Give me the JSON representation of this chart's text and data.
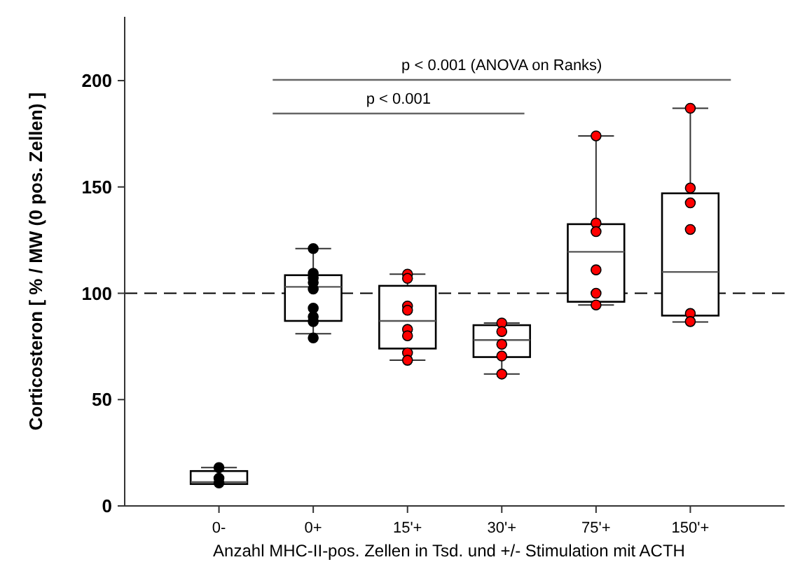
{
  "chart_data": {
    "type": "box",
    "ylabel": "Corticosteron [ % / MW (0 pos. Zellen) ]",
    "xlabel": "Anzahl MHC-II-pos. Zellen in Tsd. und +/- Stimulation mit ACTH",
    "categories": [
      "0-",
      "0+",
      "15'+",
      "30'+",
      "75'+",
      "150'+"
    ],
    "ylim": [
      0,
      230
    ],
    "yticks": [
      0,
      50,
      100,
      150,
      200
    ],
    "grid": false,
    "marker": "circle",
    "boxes": [
      {
        "low": 10.5,
        "q1": 10.3,
        "median": 11.2,
        "q3": 16.4,
        "high": 18
      },
      {
        "low": 81,
        "q1": 87,
        "median": 103,
        "q3": 108.5,
        "high": 121
      },
      {
        "low": 68.5,
        "q1": 74,
        "median": 87,
        "q3": 103.5,
        "high": 109
      },
      {
        "low": 62,
        "q1": 70,
        "median": 78,
        "q3": 85,
        "high": 86
      },
      {
        "low": 94.5,
        "q1": 96,
        "median": 119.5,
        "q3": 132.5,
        "high": 174
      },
      {
        "low": 86.5,
        "q1": 89.5,
        "median": 110,
        "q3": 147,
        "high": 187
      }
    ],
    "series": [
      {
        "type": "scatter",
        "color": "#000000",
        "x": [
          "0-",
          "0-",
          "0-",
          "0+",
          "0+",
          "0+",
          "0+",
          "0+",
          "0+",
          "0+",
          "0+",
          "0+"
        ],
        "values": [
          18,
          13,
          10.8,
          121,
          109.4,
          107.2,
          105,
          102,
          93,
          89,
          86.7,
          79
        ]
      },
      {
        "type": "scatter",
        "color": "#ff0000",
        "x": [
          "15'+",
          "15'+",
          "15'+",
          "15'+",
          "15'+",
          "15'+",
          "15'+",
          "15'+",
          "30'+",
          "30'+",
          "30'+",
          "30'+",
          "30'+",
          "75'+",
          "75'+",
          "75'+",
          "75'+",
          "75'+",
          "75'+",
          "150'+",
          "150'+",
          "150'+",
          "150'+",
          "150'+",
          "150'+"
        ],
        "values": [
          109,
          107,
          94,
          92,
          83,
          80,
          72,
          68.5,
          86,
          82,
          76,
          70.5,
          62,
          174,
          133,
          129,
          111,
          100,
          94.5,
          187,
          149.5,
          142.5,
          130,
          90.5,
          86.7
        ]
      }
    ],
    "ref_lines": [
      {
        "axis": "y",
        "value": 100,
        "line_style": "dashed",
        "color": "#000000"
      }
    ],
    "annotations": [
      "p < 0.001 (ANOVA on Ranks)",
      "p < 0.001"
    ]
  }
}
